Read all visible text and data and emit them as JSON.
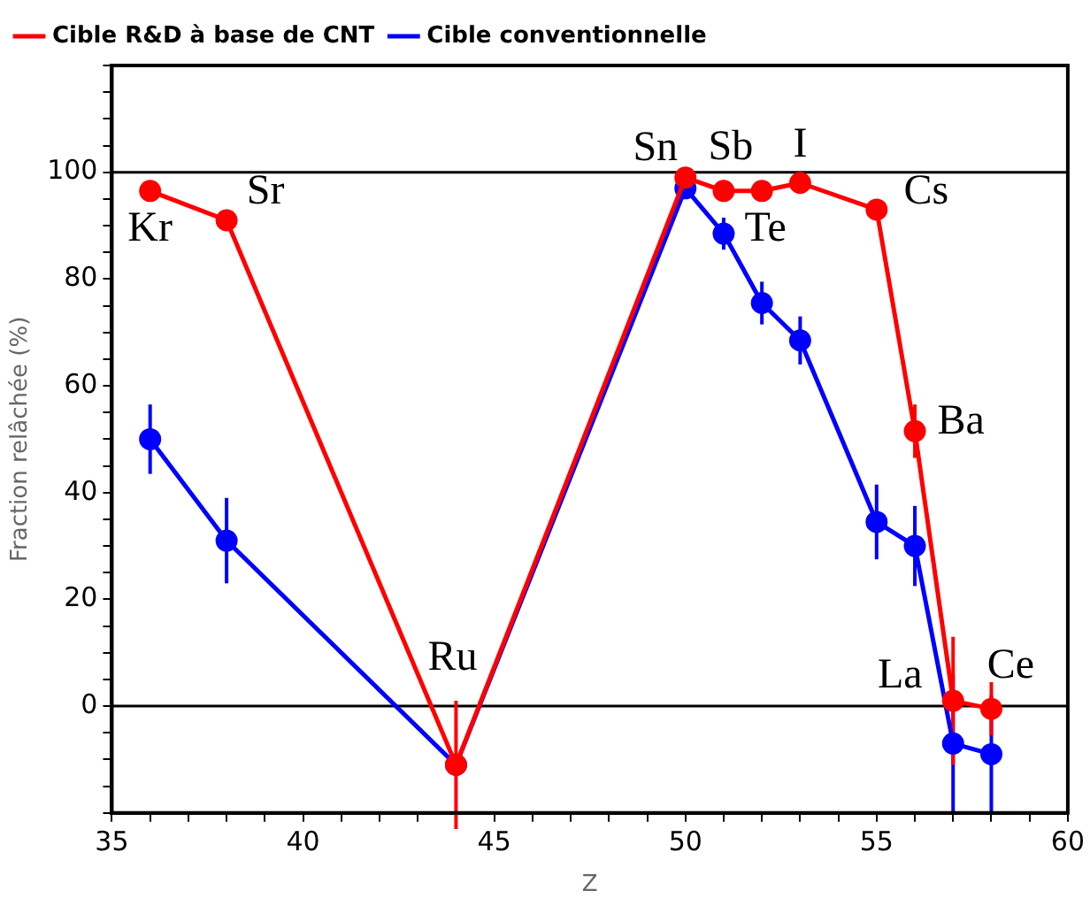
{
  "chart_data": {
    "type": "line",
    "xlabel": "Z",
    "ylabel": "Fraction relâchée (%)",
    "xlim": [
      35,
      60
    ],
    "xticks": [
      35,
      {
        "value": 36,
        "label": null
      },
      {
        "value": 37,
        "label": null
      },
      {
        "value": 38,
        "label": null
      },
      {
        "value": 39,
        "label": null
      },
      40,
      {
        "value": 41,
        "label": null
      },
      {
        "value": 42,
        "label": null
      },
      {
        "value": 43,
        "label": null
      },
      {
        "value": 44,
        "label": null
      },
      45,
      {
        "value": 46,
        "label": null
      },
      {
        "value": 47,
        "label": null
      },
      {
        "value": 48,
        "label": null
      },
      {
        "value": 49,
        "label": null
      },
      50,
      {
        "value": 51,
        "label": null
      },
      {
        "value": 52,
        "label": null
      },
      {
        "value": 53,
        "label": null
      },
      {
        "value": 54,
        "label": null
      },
      55,
      {
        "value": 56,
        "label": null
      },
      {
        "value": 57,
        "label": null
      },
      {
        "value": 58,
        "label": null
      },
      {
        "value": 59,
        "label": null
      },
      60
    ],
    "ylim": [
      -20,
      120
    ],
    "yticks": [
      {
        "value": -20,
        "label": null
      },
      {
        "value": -15,
        "label": null
      },
      {
        "value": -10,
        "label": null
      },
      {
        "value": -5,
        "label": null
      },
      0,
      {
        "value": 5,
        "label": null
      },
      {
        "value": 10,
        "label": null
      },
      {
        "value": 15,
        "label": null
      },
      20,
      {
        "value": 25,
        "label": null
      },
      {
        "value": 30,
        "label": null
      },
      {
        "value": 35,
        "label": null
      },
      40,
      {
        "value": 45,
        "label": null
      },
      {
        "value": 50,
        "label": null
      },
      {
        "value": 55,
        "label": null
      },
      60,
      {
        "value": 65,
        "label": null
      },
      {
        "value": 70,
        "label": null
      },
      {
        "value": 75,
        "label": null
      },
      80,
      {
        "value": 85,
        "label": null
      },
      {
        "value": 90,
        "label": null
      },
      {
        "value": 95,
        "label": null
      },
      100,
      {
        "value": 105,
        "label": null
      },
      {
        "value": 110,
        "label": null
      },
      {
        "value": 115,
        "label": null
      },
      {
        "value": 120,
        "label": null
      }
    ],
    "grid": false,
    "legend": "top left",
    "marker": "circle",
    "line_style": "solid",
    "ref_lines": [
      {
        "axis": "y",
        "value": 0,
        "color": "#000000"
      },
      {
        "axis": "y",
        "value": 100,
        "color": "#000000"
      }
    ],
    "series": [
      {
        "name": "Cible conventionnelle",
        "color": "#0000ff",
        "x": [
          36,
          38,
          44,
          50,
          51,
          52,
          53,
          55,
          56,
          57,
          58
        ],
        "values": [
          50,
          31,
          -11,
          97,
          88.5,
          75.5,
          68.5,
          34.5,
          30,
          -7,
          -9
        ],
        "errors": [
          6.5,
          8,
          null,
          null,
          3,
          4,
          4.5,
          7,
          7.5,
          13,
          11
        ]
      },
      {
        "name": "Cible R&D à base de CNT",
        "color": "#ff0000",
        "x": [
          36,
          38,
          44,
          50,
          51,
          52,
          53,
          55,
          56,
          57,
          58
        ],
        "values": [
          96.5,
          91,
          -11,
          99,
          96.5,
          96.5,
          98,
          93,
          51.5,
          1,
          -0.5
        ],
        "errors": [
          null,
          2,
          12,
          null,
          2,
          null,
          null,
          null,
          5,
          12,
          5
        ]
      }
    ],
    "annotations": [
      {
        "text": "Kr",
        "x": 36,
        "y": 96.5
      },
      {
        "text": "Sr",
        "x": 38,
        "y": 91
      },
      {
        "text": "Ru",
        "x": 44,
        "y": -11
      },
      {
        "text": "Sn",
        "x": 50,
        "y": 99
      },
      {
        "text": "Sb",
        "x": 51,
        "y": 96.5
      },
      {
        "text": "I",
        "x": 53,
        "y": 98
      },
      {
        "text": "Te",
        "x": 52,
        "y": 96.5
      },
      {
        "text": "Cs",
        "x": 55,
        "y": 93
      },
      {
        "text": "Ba",
        "x": 56,
        "y": 51.5
      },
      {
        "text": "La",
        "x": 57,
        "y": 1
      },
      {
        "text": "Ce",
        "x": 58,
        "y": -0.5
      }
    ]
  }
}
